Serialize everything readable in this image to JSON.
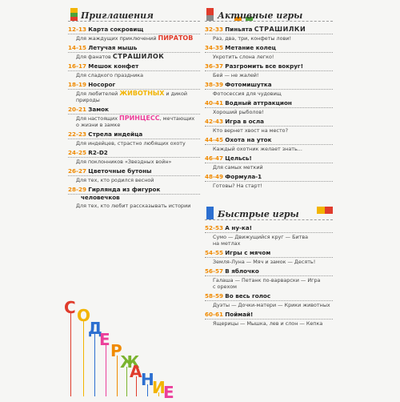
{
  "invites": {
    "title": "Приглашения",
    "items": [
      {
        "pages": "12-13",
        "title": "Карта сокровищ",
        "desc": [
          {
            "t": "Для жаждущих приключений "
          },
          {
            "t": "ПИРАТОВ",
            "c": "red"
          }
        ]
      },
      {
        "pages": "14-15",
        "title": "Летучая мышь",
        "desc": [
          {
            "t": "Для фанатов "
          },
          {
            "t": "СТРАШИЛОК",
            "c": "dark"
          }
        ]
      },
      {
        "pages": "16-17",
        "title": "Мешок конфет",
        "desc": [
          {
            "t": "Для сладкого праздника"
          }
        ]
      },
      {
        "pages": "18-19",
        "title": "Носорог",
        "desc": [
          {
            "t": "Для любителей "
          },
          {
            "t": "ЖИВОТНЫХ",
            "c": "yellow"
          },
          {
            "t": " и дикой"
          }
        ],
        "desc2": "природы"
      },
      {
        "pages": "20-21",
        "title": "Замок",
        "desc": [
          {
            "t": "Для настоящих "
          },
          {
            "t": "ПРИНЦЕСС",
            "c": "pink"
          },
          {
            "t": ", мечтающих"
          }
        ],
        "desc2": "о жизни в замке"
      },
      {
        "pages": "22-23",
        "title": "Стрела индейца",
        "desc": [
          {
            "t": "Для индейцев, страстно любящих охоту"
          }
        ]
      },
      {
        "pages": "24-25",
        "title": "R2-D2",
        "desc": [
          {
            "t": "Для поклонников «Звездных войн»"
          }
        ]
      },
      {
        "pages": "26-27",
        "title": "Цветочные бутоны",
        "desc": [
          {
            "t": "Для тех, кто родился весной"
          }
        ]
      },
      {
        "pages": "28-29",
        "title": "Гирлянда из фигурок",
        "title2": "человечков",
        "desc": [
          {
            "t": "Для тех, кто любит рассказывать истории"
          }
        ]
      }
    ]
  },
  "active": {
    "title": "Активные игры",
    "items": [
      {
        "pages": "32-33",
        "title": "Пиньята",
        "title_extra": "СТРАШИЛКИ",
        "desc": [
          {
            "t": "Раз, два, три, конфеты лови!"
          }
        ]
      },
      {
        "pages": "34-35",
        "title": "Метание колец",
        "desc": [
          {
            "t": "Укротить слона легко!"
          }
        ]
      },
      {
        "pages": "36-37",
        "title": "Разгромить все вокруг!",
        "desc": [
          {
            "t": "Бей — не жалей!"
          }
        ]
      },
      {
        "pages": "38-39",
        "title": "Фотомишутка",
        "desc": [
          {
            "t": "Фотосессия для чудовищ"
          }
        ]
      },
      {
        "pages": "40-41",
        "title": "Водный аттракцион",
        "desc": [
          {
            "t": "Хороший рыболов!"
          }
        ]
      },
      {
        "pages": "42-43",
        "title": "Игра в осла",
        "desc": [
          {
            "t": "Кто вернет хвост на место?"
          }
        ]
      },
      {
        "pages": "44-45",
        "title": "Охота на уток",
        "desc": [
          {
            "t": "Каждый охотник желает знать..."
          }
        ]
      },
      {
        "pages": "46-47",
        "title": "Цельсь!",
        "desc": [
          {
            "t": "Для самых меткий"
          }
        ]
      },
      {
        "pages": "48-49",
        "title": "Формула-1",
        "desc": [
          {
            "t": "Готовы? На старт!"
          }
        ]
      }
    ]
  },
  "quick": {
    "title": "Быстрые игры",
    "items": [
      {
        "pages": "52-53",
        "title": "А ну-ка!",
        "desc": [
          {
            "t": "Сумо — Движущийся круг — Битва"
          }
        ],
        "desc2": "на метлах"
      },
      {
        "pages": "54-55",
        "title": "Игры с мячом",
        "desc": [
          {
            "t": "Земля-Луна — Мяч и замок — Десять!"
          }
        ]
      },
      {
        "pages": "56-57",
        "title": "В яблочко",
        "desc": [
          {
            "t": "Галаша — Петанк по-варварски — Игра"
          }
        ],
        "desc2": "с орехом"
      },
      {
        "pages": "58-59",
        "title": "Во весь голос",
        "desc": [
          {
            "t": "Дуэты — Дочки-матери — Крики животных"
          }
        ]
      },
      {
        "pages": "60-61",
        "title": "Поймай!",
        "desc": [
          {
            "t": "Ящерицы — Мышка, лев и слон — Кепка"
          }
        ]
      }
    ]
  },
  "vertical_word": {
    "letters": [
      "С",
      "О",
      "Д",
      "Е",
      "Р",
      "Ж",
      "А",
      "Н",
      "И",
      "Е"
    ],
    "colors": [
      "#e03c2c",
      "#f2b400",
      "#2c6fd0",
      "#ec3f9a",
      "#f08a00",
      "#7ab32e",
      "#e03c2c",
      "#2c6fd0",
      "#f2b400",
      "#ec3f9a"
    ]
  },
  "colors": {
    "accent_pages": "#f08a00",
    "square_red": "#e03c2c",
    "square_yellow": "#f2b400",
    "square_green": "#4ca23a",
    "square_blue": "#2c6fd0"
  }
}
